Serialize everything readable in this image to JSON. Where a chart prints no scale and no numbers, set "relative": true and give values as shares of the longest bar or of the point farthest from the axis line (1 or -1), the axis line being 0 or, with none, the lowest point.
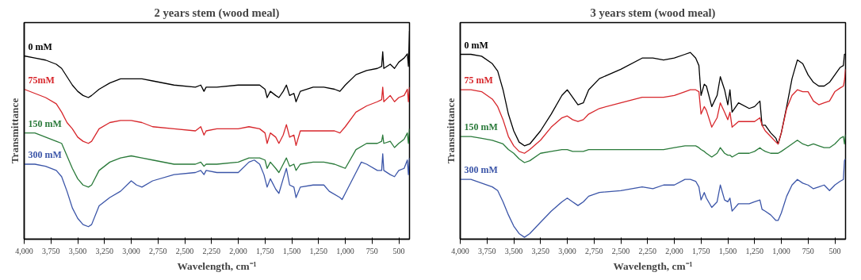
{
  "chart_data": [
    {
      "type": "line",
      "title": "2 years stem (wood meal)",
      "xlabel": "Wavelength, cm⁻¹",
      "ylabel": "Transmittance",
      "relative": true,
      "grid": false,
      "xlim": [
        4000,
        400
      ],
      "xticks": [
        {
          "value": 4000,
          "label": "4,000"
        },
        {
          "value": 3750,
          "label": "3,750"
        },
        {
          "value": 3500,
          "label": "3,500"
        },
        {
          "value": 3250,
          "label": "3,250"
        },
        {
          "value": 3000,
          "label": "3,000"
        },
        {
          "value": 2750,
          "label": "2,750"
        },
        {
          "value": 2500,
          "label": "2,500"
        },
        {
          "value": 2250,
          "label": "2,250"
        },
        {
          "value": 2000,
          "label": "2,000"
        },
        {
          "value": 1750,
          "label": "1,750"
        },
        {
          "value": 1500,
          "label": "1,500"
        },
        {
          "value": 1250,
          "label": "1,250"
        },
        {
          "value": 1000,
          "label": "1,000"
        },
        750,
        500
      ],
      "x": [
        4000,
        3900,
        3800,
        3700,
        3650,
        3600,
        3550,
        3500,
        3450,
        3400,
        3370,
        3300,
        3200,
        3100,
        3000,
        2900,
        2800,
        2600,
        2400,
        2350,
        2320,
        2300,
        2200,
        2000,
        1900,
        1800,
        1750,
        1730,
        1700,
        1650,
        1620,
        1580,
        1550,
        1520,
        1480,
        1460,
        1420,
        1300,
        1200,
        1100,
        1050,
        1000,
        900,
        800,
        700,
        660,
        650,
        640,
        580,
        540,
        500,
        450,
        420,
        410,
        400
      ],
      "series": [
        {
          "name": "0 mM",
          "color": "#000000",
          "values": [
            0.88,
            0.87,
            0.86,
            0.84,
            0.82,
            0.78,
            0.74,
            0.71,
            0.69,
            0.68,
            0.69,
            0.72,
            0.75,
            0.77,
            0.77,
            0.77,
            0.76,
            0.74,
            0.73,
            0.74,
            0.71,
            0.73,
            0.73,
            0.74,
            0.74,
            0.74,
            0.72,
            0.68,
            0.71,
            0.69,
            0.68,
            0.71,
            0.74,
            0.69,
            0.7,
            0.66,
            0.71,
            0.73,
            0.73,
            0.72,
            0.71,
            0.74,
            0.79,
            0.81,
            0.82,
            0.83,
            0.9,
            0.82,
            0.84,
            0.82,
            0.85,
            0.87,
            0.89,
            0.83,
            1.0
          ]
        },
        {
          "name": "75mM",
          "color": "#d7262b",
          "values": [
            0.72,
            0.7,
            0.68,
            0.65,
            0.61,
            0.56,
            0.53,
            0.49,
            0.47,
            0.46,
            0.47,
            0.53,
            0.56,
            0.57,
            0.57,
            0.56,
            0.54,
            0.53,
            0.52,
            0.54,
            0.5,
            0.52,
            0.53,
            0.53,
            0.54,
            0.53,
            0.51,
            0.46,
            0.51,
            0.49,
            0.46,
            0.5,
            0.55,
            0.49,
            0.5,
            0.45,
            0.52,
            0.52,
            0.52,
            0.52,
            0.51,
            0.54,
            0.61,
            0.64,
            0.66,
            0.67,
            0.73,
            0.66,
            0.69,
            0.66,
            0.68,
            0.69,
            0.72,
            0.66,
            0.73
          ]
        },
        {
          "name": "150 mM",
          "color": "#2a7a3a",
          "values": [
            0.51,
            0.51,
            0.49,
            0.47,
            0.46,
            0.4,
            0.34,
            0.29,
            0.26,
            0.25,
            0.26,
            0.33,
            0.37,
            0.39,
            0.4,
            0.39,
            0.38,
            0.36,
            0.36,
            0.37,
            0.35,
            0.36,
            0.36,
            0.37,
            0.39,
            0.39,
            0.38,
            0.34,
            0.37,
            0.34,
            0.32,
            0.36,
            0.39,
            0.35,
            0.36,
            0.33,
            0.36,
            0.37,
            0.37,
            0.36,
            0.35,
            0.34,
            0.43,
            0.46,
            0.46,
            0.47,
            0.5,
            0.46,
            0.47,
            0.44,
            0.46,
            0.48,
            0.51,
            0.46,
            0.53
          ]
        },
        {
          "name": "300 mM",
          "color": "#3b55a8",
          "x": [
            4000,
            3900,
            3800,
            3700,
            3650,
            3600,
            3550,
            3500,
            3450,
            3400,
            3370,
            3300,
            3200,
            3100,
            3000,
            2950,
            2900,
            2800,
            2600,
            2400,
            2350,
            2320,
            2300,
            2200,
            2000,
            1900,
            1850,
            1800,
            1760,
            1730,
            1700,
            1650,
            1620,
            1580,
            1550,
            1520,
            1480,
            1460,
            1420,
            1300,
            1200,
            1150,
            1050,
            1030,
            1000,
            900,
            850,
            800,
            700,
            660,
            650,
            640,
            580,
            540,
            500,
            450,
            420,
            410,
            400
          ],
          "values": [
            0.36,
            0.36,
            0.35,
            0.33,
            0.3,
            0.23,
            0.15,
            0.1,
            0.07,
            0.06,
            0.07,
            0.16,
            0.2,
            0.23,
            0.28,
            0.26,
            0.25,
            0.28,
            0.31,
            0.32,
            0.33,
            0.31,
            0.33,
            0.32,
            0.32,
            0.37,
            0.38,
            0.36,
            0.31,
            0.25,
            0.29,
            0.24,
            0.22,
            0.29,
            0.34,
            0.26,
            0.25,
            0.2,
            0.25,
            0.26,
            0.26,
            0.23,
            0.2,
            0.19,
            0.22,
            0.32,
            0.37,
            0.36,
            0.33,
            0.33,
            0.41,
            0.33,
            0.31,
            0.3,
            0.33,
            0.34,
            0.38,
            0.31,
            0.39
          ]
        }
      ]
    },
    {
      "type": "line",
      "title": "3 years stem (wood meal)",
      "xlabel": "Wavelength, cm⁻¹",
      "ylabel": "Transmittance",
      "relative": true,
      "grid": false,
      "xlim": [
        4000,
        400
      ],
      "xticks": [
        {
          "value": 4000,
          "label": "4,000"
        },
        {
          "value": 3750,
          "label": "3,750"
        },
        {
          "value": 3500,
          "label": "3,500"
        },
        {
          "value": 3250,
          "label": "3,250"
        },
        {
          "value": 3000,
          "label": "3,000"
        },
        {
          "value": 2750,
          "label": "2,750"
        },
        {
          "value": 2500,
          "label": "2,500"
        },
        {
          "value": 2250,
          "label": "2,250"
        },
        {
          "value": 2000,
          "label": "2,000"
        },
        {
          "value": 1750,
          "label": "1,750"
        },
        {
          "value": 1500,
          "label": "1,500"
        },
        {
          "value": 1250,
          "label": "1,250"
        },
        {
          "value": 1000,
          "label": "1,000"
        },
        750,
        500
      ],
      "x": [
        4000,
        3900,
        3800,
        3700,
        3650,
        3600,
        3550,
        3500,
        3450,
        3400,
        3350,
        3250,
        3150,
        3050,
        3000,
        2950,
        2900,
        2850,
        2800,
        2700,
        2500,
        2300,
        2200,
        2100,
        2000,
        1900,
        1850,
        1800,
        1770,
        1750,
        1720,
        1700,
        1650,
        1600,
        1570,
        1530,
        1500,
        1480,
        1460,
        1400,
        1300,
        1250,
        1200,
        1180,
        1150,
        1100,
        1050,
        1030,
        1000,
        950,
        900,
        850,
        800,
        750,
        700,
        650,
        600,
        550,
        500,
        450,
        420,
        410,
        400
      ],
      "series": [
        {
          "name": "0 mM",
          "color": "#000000",
          "values": [
            0.99,
            0.99,
            0.98,
            0.94,
            0.9,
            0.8,
            0.67,
            0.58,
            0.52,
            0.5,
            0.51,
            0.58,
            0.67,
            0.77,
            0.8,
            0.76,
            0.72,
            0.73,
            0.8,
            0.86,
            0.91,
            0.97,
            0.97,
            0.96,
            0.97,
            0.99,
            1.0,
            0.97,
            0.93,
            0.77,
            0.83,
            0.82,
            0.71,
            0.77,
            0.87,
            0.8,
            0.72,
            0.8,
            0.68,
            0.73,
            0.7,
            0.71,
            0.74,
            0.61,
            0.61,
            0.57,
            0.54,
            0.51,
            0.57,
            0.71,
            0.86,
            0.96,
            0.94,
            0.88,
            0.84,
            0.82,
            0.82,
            0.84,
            0.88,
            0.92,
            0.93,
            0.99,
            0.99
          ]
        },
        {
          "name": "75 mM",
          "color": "#d7262b",
          "values": [
            0.8,
            0.8,
            0.79,
            0.75,
            0.71,
            0.64,
            0.55,
            0.5,
            0.47,
            0.46,
            0.48,
            0.53,
            0.6,
            0.65,
            0.66,
            0.64,
            0.63,
            0.64,
            0.67,
            0.7,
            0.73,
            0.76,
            0.76,
            0.76,
            0.77,
            0.79,
            0.8,
            0.8,
            0.79,
            0.67,
            0.71,
            0.69,
            0.6,
            0.65,
            0.73,
            0.68,
            0.64,
            0.68,
            0.6,
            0.63,
            0.63,
            0.63,
            0.65,
            0.61,
            0.58,
            0.55,
            0.52,
            0.51,
            0.57,
            0.7,
            0.77,
            0.8,
            0.79,
            0.79,
            0.74,
            0.72,
            0.73,
            0.74,
            0.79,
            0.81,
            0.82,
            0.85,
            0.91
          ]
        },
        {
          "name": "150 mM",
          "color": "#2a7a3a",
          "values": [
            0.55,
            0.55,
            0.54,
            0.53,
            0.52,
            0.51,
            0.48,
            0.46,
            0.43,
            0.41,
            0.42,
            0.46,
            0.47,
            0.48,
            0.48,
            0.47,
            0.47,
            0.47,
            0.48,
            0.48,
            0.48,
            0.48,
            0.48,
            0.48,
            0.49,
            0.5,
            0.5,
            0.5,
            0.49,
            0.48,
            0.47,
            0.46,
            0.44,
            0.46,
            0.49,
            0.46,
            0.45,
            0.45,
            0.44,
            0.46,
            0.46,
            0.47,
            0.49,
            0.48,
            0.47,
            0.46,
            0.46,
            0.46,
            0.47,
            0.49,
            0.51,
            0.53,
            0.51,
            0.5,
            0.51,
            0.5,
            0.49,
            0.49,
            0.51,
            0.54,
            0.55,
            0.51,
            0.56
          ]
        },
        {
          "name": "300 mM",
          "color": "#3b55a8",
          "values": [
            0.32,
            0.32,
            0.3,
            0.28,
            0.26,
            0.2,
            0.13,
            0.07,
            0.03,
            0.01,
            0.03,
            0.09,
            0.15,
            0.2,
            0.22,
            0.2,
            0.18,
            0.2,
            0.23,
            0.25,
            0.26,
            0.28,
            0.27,
            0.29,
            0.29,
            0.32,
            0.32,
            0.31,
            0.28,
            0.21,
            0.25,
            0.22,
            0.17,
            0.2,
            0.29,
            0.21,
            0.2,
            0.22,
            0.15,
            0.19,
            0.19,
            0.2,
            0.21,
            0.16,
            0.15,
            0.13,
            0.1,
            0.1,
            0.14,
            0.23,
            0.29,
            0.32,
            0.3,
            0.29,
            0.27,
            0.28,
            0.29,
            0.26,
            0.29,
            0.31,
            0.32,
            0.42,
            0.43
          ]
        }
      ]
    }
  ]
}
